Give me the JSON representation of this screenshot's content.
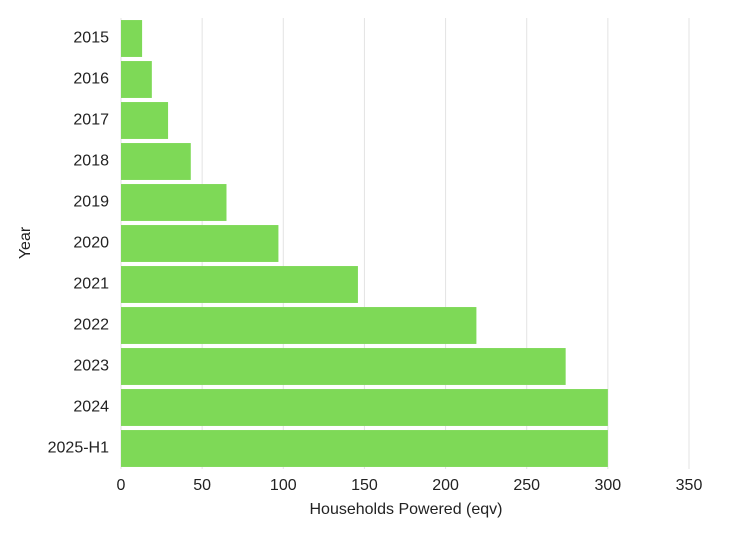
{
  "chart_data": {
    "type": "bar",
    "orientation": "horizontal",
    "x_label": "Households Powered (eqv)",
    "y_label": "Year",
    "categories": [
      "2015",
      "2016",
      "2017",
      "2018",
      "2019",
      "2020",
      "2021",
      "2022",
      "2023",
      "2024",
      "2025-H1"
    ],
    "values": [
      13,
      19,
      29,
      43,
      65,
      97,
      146,
      219,
      274,
      300,
      300
    ],
    "color": "#7ed957",
    "xlim": [
      0,
      350
    ],
    "xticks": [
      0,
      50,
      100,
      150,
      200,
      250,
      300,
      350
    ],
    "grid": true
  }
}
